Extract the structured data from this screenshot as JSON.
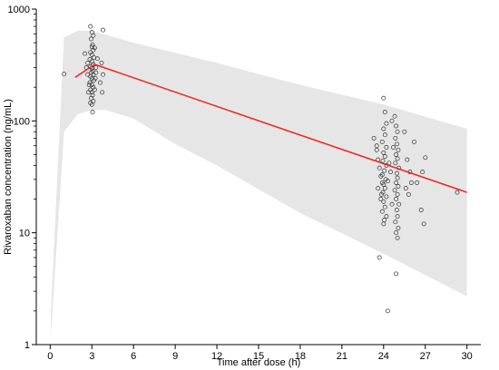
{
  "chart_data": {
    "type": "scatter",
    "title": "",
    "xlabel": "Time after dose (h)",
    "ylabel": "Rivaroxaban concentration (ng/mL)",
    "xlim": [
      -1,
      31
    ],
    "ylim": [
      1,
      1000
    ],
    "yscale": "log",
    "grid": false,
    "x_ticks": [
      0,
      3,
      6,
      9,
      12,
      15,
      18,
      21,
      24,
      27,
      30
    ],
    "y_ticks": [
      1,
      10,
      100,
      1000
    ],
    "x_tick_labels": [
      "0",
      "3",
      "6",
      "9",
      "12",
      "15",
      "18",
      "21",
      "24",
      "27",
      "30"
    ],
    "y_tick_labels": [
      "1",
      "10",
      "100",
      "1000"
    ],
    "colors": {
      "band": "#e6e6e6",
      "median": "#e8302a",
      "points": "#333333",
      "axis": "#000000"
    },
    "prediction_band": {
      "upper": [
        [
          0.05,
          2
        ],
        [
          1,
          560
        ],
        [
          2,
          640
        ],
        [
          3,
          640
        ],
        [
          6,
          500
        ],
        [
          12,
          330
        ],
        [
          18,
          210
        ],
        [
          24,
          140
        ],
        [
          30,
          85
        ]
      ],
      "lower": [
        [
          30,
          2.7
        ],
        [
          24,
          6.5
        ],
        [
          18,
          15
        ],
        [
          12,
          40
        ],
        [
          9,
          62
        ],
        [
          6,
          105
        ],
        [
          4,
          125
        ],
        [
          3,
          125
        ],
        [
          2,
          115
        ],
        [
          1,
          80
        ],
        [
          0.05,
          1.2
        ]
      ]
    },
    "median_line": [
      [
        1.8,
        245
      ],
      [
        3.2,
        320
      ],
      [
        30,
        23
      ]
    ],
    "observations": [
      [
        1,
        262
      ],
      [
        2.5,
        400
      ],
      [
        2.7,
        330
      ],
      [
        2.9,
        700
      ],
      [
        3.0,
        620
      ],
      [
        3.1,
        580
      ],
      [
        2.95,
        540
      ],
      [
        3.05,
        480
      ],
      [
        3.0,
        460
      ],
      [
        3.1,
        430
      ],
      [
        2.9,
        410
      ],
      [
        3.0,
        390
      ],
      [
        3.15,
        370
      ],
      [
        2.85,
        355
      ],
      [
        3.0,
        340
      ],
      [
        3.1,
        320
      ],
      [
        2.9,
        305
      ],
      [
        3.0,
        295
      ],
      [
        3.05,
        280
      ],
      [
        2.95,
        270
      ],
      [
        3.1,
        260
      ],
      [
        2.9,
        250
      ],
      [
        3.0,
        240
      ],
      [
        3.15,
        230
      ],
      [
        2.85,
        220
      ],
      [
        3.0,
        210
      ],
      [
        3.1,
        200
      ],
      [
        2.9,
        190
      ],
      [
        3.0,
        180
      ],
      [
        3.05,
        170
      ],
      [
        2.95,
        160
      ],
      [
        3.1,
        150
      ],
      [
        2.9,
        145
      ],
      [
        3.0,
        140
      ],
      [
        3.05,
        120
      ],
      [
        2.7,
        260
      ],
      [
        3.3,
        300
      ],
      [
        3.2,
        450
      ],
      [
        3.8,
        650
      ],
      [
        3.7,
        330
      ],
      [
        3.8,
        260
      ],
      [
        3.6,
        220
      ],
      [
        3.75,
        180
      ],
      [
        2.6,
        300
      ],
      [
        2.8,
        210
      ],
      [
        3.2,
        190
      ],
      [
        3.25,
        240
      ],
      [
        2.75,
        180
      ],
      [
        3.3,
        270
      ],
      [
        3.4,
        360
      ],
      [
        23.3,
        70
      ],
      [
        23.5,
        60
      ],
      [
        23.6,
        45
      ],
      [
        23.7,
        38
      ],
      [
        23.8,
        32
      ],
      [
        23.9,
        28
      ],
      [
        23.6,
        25
      ],
      [
        23.8,
        20
      ],
      [
        23.5,
        55
      ],
      [
        24.0,
        160
      ],
      [
        24.1,
        120
      ],
      [
        24.2,
        95
      ],
      [
        24.0,
        85
      ],
      [
        24.1,
        75
      ],
      [
        23.9,
        65
      ],
      [
        24.2,
        58
      ],
      [
        24.0,
        52
      ],
      [
        24.1,
        48
      ],
      [
        23.95,
        44
      ],
      [
        24.2,
        40
      ],
      [
        24.05,
        36
      ],
      [
        23.9,
        33
      ],
      [
        24.15,
        30
      ],
      [
        24.0,
        27
      ],
      [
        24.1,
        25
      ],
      [
        23.95,
        23
      ],
      [
        24.2,
        21
      ],
      [
        24.0,
        19
      ],
      [
        24.1,
        17
      ],
      [
        23.9,
        15.5
      ],
      [
        24.2,
        14
      ],
      [
        24.05,
        13
      ],
      [
        24.0,
        12
      ],
      [
        23.85,
        22
      ],
      [
        24.3,
        29
      ],
      [
        24.5,
        35
      ],
      [
        24.4,
        42
      ],
      [
        24.6,
        18
      ],
      [
        24.8,
        110
      ],
      [
        24.9,
        90
      ],
      [
        25.0,
        80
      ],
      [
        24.85,
        70
      ],
      [
        24.95,
        62
      ],
      [
        25.05,
        55
      ],
      [
        24.9,
        50
      ],
      [
        25.0,
        46
      ],
      [
        24.85,
        42
      ],
      [
        25.1,
        38
      ],
      [
        24.95,
        34
      ],
      [
        25.0,
        31
      ],
      [
        24.9,
        28
      ],
      [
        25.05,
        26
      ],
      [
        24.8,
        24
      ],
      [
        25.0,
        22
      ],
      [
        24.9,
        20
      ],
      [
        25.1,
        18
      ],
      [
        24.95,
        16
      ],
      [
        25.0,
        14
      ],
      [
        24.85,
        12.5
      ],
      [
        25.05,
        11
      ],
      [
        24.9,
        10
      ],
      [
        25.0,
        9
      ],
      [
        25.5,
        80
      ],
      [
        25.7,
        45
      ],
      [
        25.9,
        35
      ],
      [
        26.0,
        28
      ],
      [
        25.6,
        25
      ],
      [
        25.8,
        22
      ],
      [
        26.2,
        65
      ],
      [
        26.4,
        28
      ],
      [
        26.7,
        16
      ],
      [
        26.9,
        12
      ],
      [
        27.0,
        47
      ],
      [
        26.8,
        35
      ],
      [
        23.7,
        6
      ],
      [
        24.9,
        4.3
      ],
      [
        24.3,
        2
      ],
      [
        29.3,
        23
      ],
      [
        24.7,
        58
      ],
      [
        24.6,
        100
      ]
    ]
  }
}
